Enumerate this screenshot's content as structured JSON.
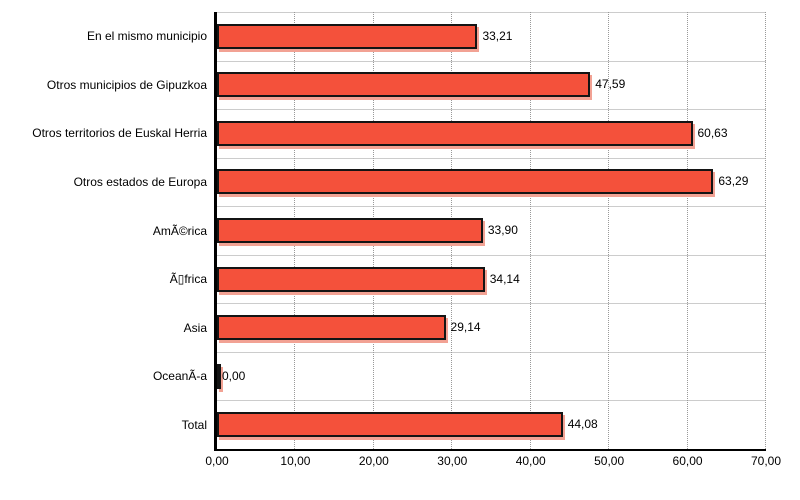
{
  "chart_data": {
    "type": "bar",
    "orientation": "horizontal",
    "title": "",
    "categories": [
      "En el mismo municipio",
      "Otros municipios de Gipuzkoa",
      "Otros territorios de Euskal Herria",
      "Otros estados de Europa",
      "AmÃ©rica",
      "Ã▯frica",
      "Asia",
      "OceanÃ-a",
      "Total"
    ],
    "values": [
      33.21,
      47.59,
      60.63,
      63.29,
      33.9,
      34.14,
      29.14,
      0.0,
      44.08
    ],
    "value_labels": [
      "33,21",
      "47,59",
      "60,63",
      "63,29",
      "33,90",
      "34,14",
      "29,14",
      "0,00",
      "44,08"
    ],
    "x_tick_labels": [
      "0,00",
      "10,00",
      "20,00",
      "30,00",
      "40,00",
      "50,00",
      "60,00",
      "70,00"
    ],
    "x_tick_values": [
      0,
      10,
      20,
      30,
      40,
      50,
      60,
      70
    ],
    "xlim": [
      0,
      70
    ],
    "legend": "none",
    "grid": {
      "horizontal": "solid lines at category boundaries",
      "vertical": "dotted lines at major ticks"
    },
    "colors": {
      "bar_fill": "#F4513B",
      "bar_border": "#141414",
      "bar_shadow": "#F2A294",
      "grid_horizontal": "#CCCCCC",
      "grid_vertical": "#999999",
      "axis": "#000000",
      "background": "#FFFFFF",
      "text": "#000000"
    }
  }
}
